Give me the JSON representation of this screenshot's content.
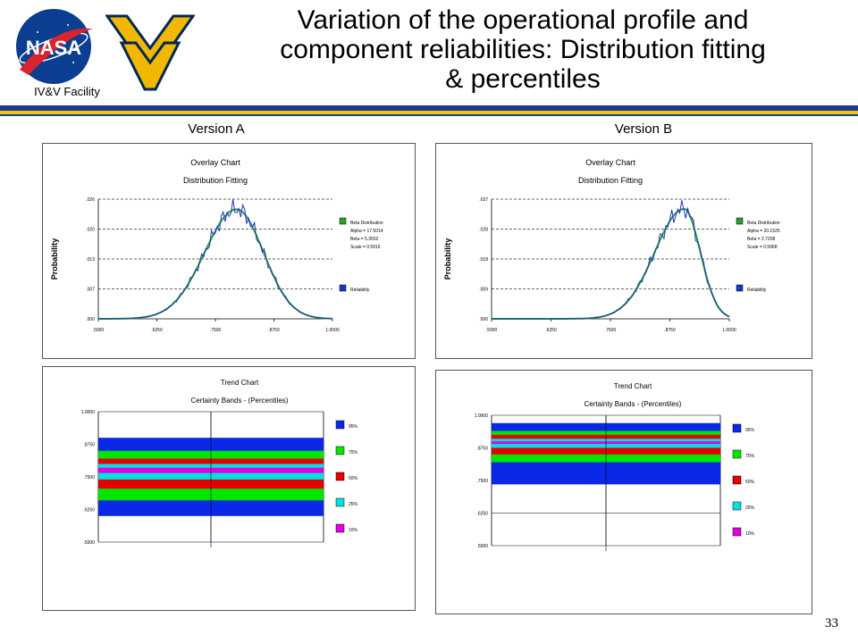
{
  "slide": {
    "title_line1": "Variation of the operational profile and",
    "title_line2": "component reliabilities: Distribution fitting",
    "title_line3": "& percentiles",
    "facility_label": "IV&V Facility",
    "nasa_logo_text": "NASA",
    "wv_logo_text": "WV",
    "page_number": "33",
    "colors": {
      "rule_blue": "#1f3a93",
      "rule_gold": "#f2c500",
      "nasa_blue": "#0b3d91",
      "wv_gold": "#f2b700",
      "wv_navy": "#002855"
    }
  },
  "versions": [
    "Version A",
    "Version B"
  ],
  "chart_data": [
    {
      "type": "line",
      "panel": "Version A overlay",
      "title": "Overlay Chart",
      "subtitle": "Distribution Fitting",
      "ylabel": "Probability",
      "xlim": [
        0.5,
        1.0
      ],
      "ylim": [
        0,
        0.026
      ],
      "x_ticks": [
        0.5,
        0.625,
        0.75,
        0.875,
        1.0
      ],
      "x_tick_labels": [
        ".5000",
        ".6250",
        ".7500",
        ".8750",
        "1.0000"
      ],
      "y_ticks": [
        0,
        0.0065,
        0.013,
        0.0195,
        0.026
      ],
      "y_tick_labels": [
        ".000",
        ".007",
        ".013",
        ".020",
        ".026"
      ],
      "grid": "horizontal dashed",
      "fit": {
        "alpha": 17.5014,
        "beta": 5.3552,
        "scale": 0.5916
      },
      "series": [
        {
          "name": "Beta Distribution",
          "color": "#2ba02b",
          "peak_x": 0.795,
          "peak_y": 0.0238,
          "sd": 0.068,
          "skew": -0.15
        },
        {
          "name": "Reliability",
          "color": "#2233cc",
          "peak_x": 0.795,
          "peak_y": 0.0238,
          "sd": 0.068,
          "skew": -0.15,
          "noisy": true
        }
      ],
      "legend": [
        {
          "name": "Beta Distribution",
          "lines": [
            "Alpha = 17.5014",
            "Beta = 5.3552",
            "Scale = 0.5916"
          ],
          "color": "#2ba02b"
        },
        {
          "name": "Reliability",
          "lines": [],
          "color": "#2233cc"
        }
      ]
    },
    {
      "type": "line",
      "panel": "Version B overlay",
      "title": "Overlay Chart",
      "subtitle": "Distribution Fitting",
      "ylabel": "Probability",
      "xlim": [
        0.5,
        1.0
      ],
      "ylim": [
        0,
        0.037
      ],
      "x_ticks": [
        0.5,
        0.625,
        0.75,
        0.875,
        1.0
      ],
      "x_tick_labels": [
        ".5000",
        ".6250",
        ".7500",
        ".8750",
        "1.0000"
      ],
      "y_ticks": [
        0,
        0.00925,
        0.0185,
        0.02775,
        0.037
      ],
      "y_tick_labels": [
        ".000",
        ".009",
        ".018",
        ".028",
        ".037"
      ],
      "grid": "horizontal dashed",
      "fit": {
        "alpha": 20.1525,
        "beta": 2.7208,
        "scale": 0.5968
      },
      "series": [
        {
          "name": "Beta Distribution",
          "color": "#2ba02b",
          "peak_x": 0.905,
          "peak_y": 0.034,
          "sd": 0.062,
          "skew": -0.45
        },
        {
          "name": "Reliability",
          "color": "#2233cc",
          "peak_x": 0.905,
          "peak_y": 0.034,
          "sd": 0.062,
          "skew": -0.45,
          "noisy": true
        }
      ],
      "legend": [
        {
          "name": "Beta Distribution",
          "lines": [
            "Alpha = 20.1525",
            "Beta = 2.7208",
            "Scale = 0.5968"
          ],
          "color": "#2ba02b"
        },
        {
          "name": "Reliability",
          "lines": [],
          "color": "#2233cc"
        }
      ]
    },
    {
      "type": "area",
      "panel": "Version A trend",
      "title": "Trend Chart",
      "subtitle": "Certainty Bands - (Percentiles)",
      "ylim": [
        0.5,
        1.0
      ],
      "y_ticks": [
        0.5,
        0.625,
        0.75,
        0.875,
        1.0
      ],
      "y_tick_labels": [
        ".5000",
        ".6250",
        ".7500",
        ".8750",
        "1.0000"
      ],
      "bands": [
        {
          "name": "95%",
          "from": 0.6,
          "to": 0.9,
          "color": "#0a28e6"
        },
        {
          "name": "75%",
          "from": 0.66,
          "to": 0.85,
          "color": "#00e600"
        },
        {
          "name": "50%",
          "from": 0.705,
          "to": 0.82,
          "color": "#e60000"
        },
        {
          "name": "25%",
          "from": 0.74,
          "to": 0.8,
          "color": "#00e0e0"
        },
        {
          "name": "10%",
          "from": 0.765,
          "to": 0.785,
          "color": "#e000e0"
        }
      ]
    },
    {
      "type": "area",
      "panel": "Version B trend",
      "title": "Trend Chart",
      "subtitle": "Certainty Bands - (Percentiles)",
      "ylim": [
        0.5,
        1.0
      ],
      "y_ticks": [
        0.5,
        0.625,
        0.75,
        0.875,
        1.0
      ],
      "y_tick_labels": [
        ".5000",
        ".6250",
        ".7500",
        ".8750",
        "1.0000"
      ],
      "bands": [
        {
          "name": "95%",
          "from": 0.735,
          "to": 0.97,
          "color": "#0a28e6"
        },
        {
          "name": "75%",
          "from": 0.82,
          "to": 0.94,
          "color": "#00e600"
        },
        {
          "name": "50%",
          "from": 0.85,
          "to": 0.925,
          "color": "#e60000"
        },
        {
          "name": "25%",
          "from": 0.875,
          "to": 0.91,
          "color": "#00e0e0"
        },
        {
          "name": "10%",
          "from": 0.89,
          "to": 0.9,
          "color": "#e000e0"
        }
      ]
    }
  ]
}
